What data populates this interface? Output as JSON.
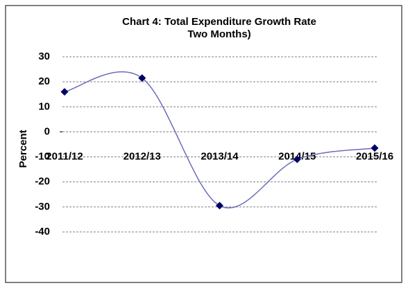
{
  "chart_data": {
    "type": "line",
    "title": "Chart 4: Total Expenditure Growth Rate",
    "subtitle": "Two Months)",
    "y_label": "Percent",
    "categories": [
      "2011/12",
      "2012/13",
      "2013/14",
      "2014/15",
      "2015/16"
    ],
    "series": [
      {
        "name": "Total Expenditure Growth Rate",
        "color": "#6b6bbf",
        "marker_color": "#000066",
        "values": [
          16,
          21.5,
          -29.5,
          -11,
          -6.5
        ]
      }
    ],
    "ylim": [
      -40,
      30
    ],
    "yticks": [
      30,
      20,
      10,
      0,
      -10,
      -20,
      -30,
      -40
    ],
    "grid": true,
    "smooth": true,
    "legend": false
  }
}
